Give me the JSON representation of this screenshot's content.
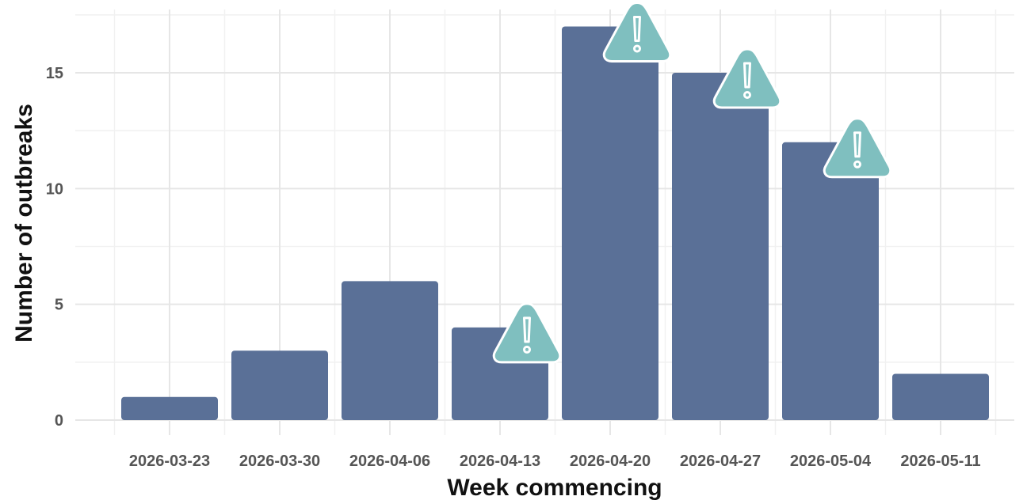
{
  "chart_data": {
    "type": "bar",
    "title": "",
    "xlabel": "Week commencing",
    "ylabel": "Number of outbreaks",
    "categories": [
      "2026-03-23",
      "2026-03-30",
      "2026-04-06",
      "2026-04-13",
      "2026-04-20",
      "2026-04-27",
      "2026-05-04",
      "2026-05-11"
    ],
    "values": [
      1,
      3,
      6,
      4,
      17,
      15,
      12,
      2
    ],
    "yticks": [
      0,
      5,
      10,
      15
    ],
    "ylim": [
      0,
      18
    ],
    "grid": true,
    "bar_color": "#5a7097",
    "warning_icon_color": "#7fbfbf",
    "warning_icon": "warning-triangle-icon",
    "warning_categories": [
      "2026-04-13",
      "2026-04-20",
      "2026-04-27",
      "2026-05-04"
    ]
  }
}
